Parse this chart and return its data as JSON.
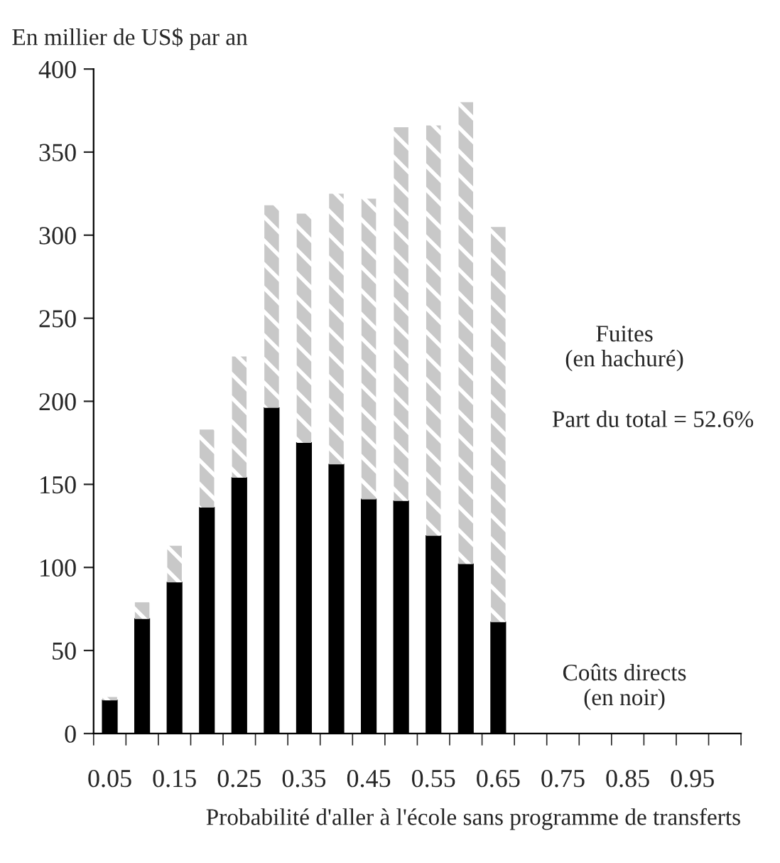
{
  "chart_data": {
    "type": "bar",
    "stacked": true,
    "ylabel": "En millier de US$ par an",
    "xlabel": "Probabilité d'aller à l'école sans programme de transferts",
    "categories": [
      "0.05",
      null,
      "0.15",
      null,
      "0.25",
      null,
      "0.35",
      null,
      "0.45",
      null,
      "0.55",
      null,
      "0.65",
      null,
      "0.75",
      null,
      "0.85",
      null,
      "0.95",
      null
    ],
    "series": [
      {
        "color": "#000000",
        "values": [
          20,
          69,
          91,
          136,
          154,
          196,
          175,
          162,
          141,
          140,
          119,
          102,
          67,
          null,
          null,
          null,
          null,
          null,
          null,
          null
        ]
      },
      {
        "color": "#c8c8c8",
        "values": [
          2,
          10,
          22,
          47,
          73,
          122,
          138,
          163,
          181,
          225,
          247,
          278,
          238,
          null,
          null,
          null,
          null,
          null,
          null,
          null
        ]
      }
    ],
    "ylim": [
      0,
      400
    ],
    "yticks": [
      0,
      50,
      100,
      150,
      200,
      250,
      300,
      350,
      400
    ],
    "annotations": [
      "Fuites\n(en hachuré)",
      "Part du total = 52.6%",
      "Coûts directs\n(en noir)"
    ],
    "grid": false,
    "legend": false
  }
}
